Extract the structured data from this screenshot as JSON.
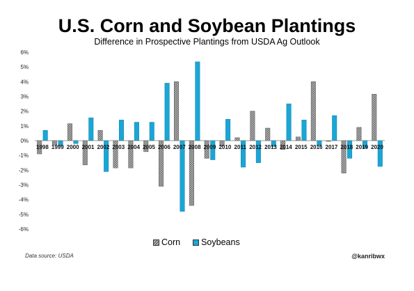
{
  "chart_data": {
    "type": "bar",
    "title": "U.S. Corn and Soybean Plantings",
    "subtitle": "Difference in Prospective Plantings from USDA Ag Outlook",
    "categories": [
      "1998",
      "1999",
      "2000",
      "2001",
      "2002",
      "2003",
      "2004",
      "2005",
      "2006",
      "2007",
      "2008",
      "2009",
      "2010",
      "2011",
      "2012",
      "2013",
      "2014",
      "2015",
      "2016",
      "2017",
      "2018",
      "2019",
      "2020"
    ],
    "series": [
      {
        "name": "Corn",
        "color": "#9a9a9a",
        "pattern": "hatched-gray",
        "values": [
          -0.9,
          -0.3,
          1.15,
          -1.65,
          0.7,
          -1.85,
          -1.85,
          -0.75,
          -3.1,
          4.0,
          -4.4,
          -1.2,
          -0.35,
          0.2,
          2.0,
          0.85,
          -0.6,
          0.25,
          4.0,
          -0.05,
          -2.2,
          0.9,
          3.15
        ]
      },
      {
        "name": "Soybeans",
        "color": "#1aa6d6",
        "values": [
          0.7,
          -0.35,
          -0.2,
          1.55,
          -2.1,
          1.4,
          1.25,
          1.25,
          3.9,
          -4.8,
          5.35,
          -1.3,
          1.45,
          -1.8,
          -1.5,
          -0.4,
          2.5,
          1.4,
          -0.35,
          1.7,
          -1.2,
          -0.5,
          -1.75
        ]
      }
    ],
    "ylim": [
      -6,
      6
    ],
    "yticks": [
      "-6%",
      "-5%",
      "-4%",
      "-3%",
      "-2%",
      "-1%",
      "0%",
      "1%",
      "2%",
      "3%",
      "4%",
      "5%",
      "6%"
    ],
    "legend": "bottom-center",
    "grid": false
  },
  "source_note": "Data source: USDA",
  "handle": "@kanribwx"
}
